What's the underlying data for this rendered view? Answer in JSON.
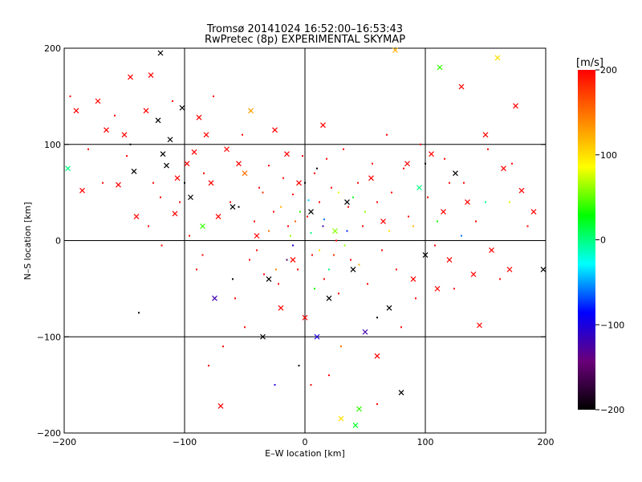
{
  "chart_data": {
    "type": "scatter",
    "title": "Tromsø 20141024 16:52:00–16:53:43",
    "subtitle": "RwPretec (8p) EXPERIMENTAL SKYMAP",
    "xlabel": "E–W location [km]",
    "ylabel": "N–S location [km]",
    "xlim": [
      -200,
      200
    ],
    "ylim": [
      -200,
      200
    ],
    "xticks": [
      "−200",
      "−100",
      "0",
      "100",
      "200"
    ],
    "yticks": [
      "−200",
      "−100",
      "0",
      "100",
      "200"
    ],
    "x_tick_values": [
      -200,
      -100,
      0,
      100,
      200
    ],
    "y_tick_values": [
      -200,
      -100,
      0,
      100,
      200
    ],
    "grid": true,
    "colorbar": {
      "label": "[m/s]",
      "range": [
        -200,
        200
      ],
      "ticks": [
        "200",
        "100",
        "0",
        "−100",
        "−200"
      ],
      "tick_values": [
        200,
        100,
        0,
        -100,
        -200
      ],
      "colors": [
        "#000000",
        "#6a007a",
        "#0000ff",
        "#00ffff",
        "#00ff00",
        "#ffff00",
        "#ff8000",
        "#ff0000"
      ]
    },
    "series": [
      {
        "marker": "x",
        "points": [
          [
            -197,
            75,
            0
          ],
          [
            -190,
            135,
            200
          ],
          [
            -185,
            52,
            200
          ],
          [
            -172,
            145,
            200
          ],
          [
            -165,
            115,
            200
          ],
          [
            -155,
            58,
            200
          ],
          [
            -150,
            110,
            200
          ],
          [
            -145,
            170,
            200
          ],
          [
            -142,
            72,
            -200
          ],
          [
            -140,
            25,
            200
          ],
          [
            -132,
            135,
            200
          ],
          [
            -128,
            172,
            200
          ],
          [
            -122,
            125,
            -200
          ],
          [
            -120,
            195,
            -200
          ],
          [
            -118,
            90,
            -200
          ],
          [
            -115,
            78,
            -200
          ],
          [
            -112,
            105,
            -200
          ],
          [
            -108,
            28,
            200
          ],
          [
            -106,
            65,
            200
          ],
          [
            -102,
            138,
            -200
          ],
          [
            -98,
            80,
            200
          ],
          [
            -95,
            45,
            -200
          ],
          [
            -92,
            92,
            200
          ],
          [
            -88,
            128,
            200
          ],
          [
            -85,
            15,
            40
          ],
          [
            -82,
            110,
            200
          ],
          [
            -78,
            60,
            200
          ],
          [
            -75,
            -60,
            -120
          ],
          [
            -72,
            25,
            200
          ],
          [
            -70,
            -172,
            200
          ],
          [
            -65,
            95,
            200
          ],
          [
            -60,
            35,
            -200
          ],
          [
            -55,
            80,
            200
          ],
          [
            -50,
            70,
            150
          ],
          [
            -45,
            135,
            130
          ],
          [
            -40,
            5,
            200
          ],
          [
            -35,
            -100,
            -200
          ],
          [
            -30,
            -40,
            -200
          ],
          [
            -25,
            115,
            200
          ],
          [
            -20,
            -70,
            200
          ],
          [
            -15,
            90,
            200
          ],
          [
            -10,
            -20,
            200
          ],
          [
            -5,
            60,
            200
          ],
          [
            0,
            -80,
            200
          ],
          [
            5,
            30,
            -200
          ],
          [
            10,
            -100,
            -100
          ],
          [
            15,
            120,
            200
          ],
          [
            20,
            -60,
            -200
          ],
          [
            25,
            10,
            60
          ],
          [
            30,
            -185,
            100
          ],
          [
            35,
            40,
            -200
          ],
          [
            40,
            -30,
            -200
          ],
          [
            42,
            -192,
            20
          ],
          [
            45,
            -175,
            40
          ],
          [
            50,
            -95,
            -120
          ],
          [
            55,
            65,
            200
          ],
          [
            60,
            -120,
            200
          ],
          [
            65,
            20,
            200
          ],
          [
            70,
            -70,
            -200
          ],
          [
            75,
            198,
            120
          ],
          [
            80,
            -158,
            -200
          ],
          [
            85,
            80,
            200
          ],
          [
            90,
            -40,
            200
          ],
          [
            95,
            55,
            0
          ],
          [
            100,
            -15,
            -200
          ],
          [
            105,
            90,
            200
          ],
          [
            110,
            -50,
            200
          ],
          [
            112,
            180,
            40
          ],
          [
            115,
            30,
            200
          ],
          [
            120,
            -20,
            200
          ],
          [
            125,
            70,
            -200
          ],
          [
            130,
            160,
            200
          ],
          [
            135,
            40,
            200
          ],
          [
            140,
            -35,
            200
          ],
          [
            145,
            -88,
            200
          ],
          [
            150,
            110,
            200
          ],
          [
            155,
            -10,
            200
          ],
          [
            160,
            190,
            100
          ],
          [
            165,
            75,
            200
          ],
          [
            170,
            -30,
            200
          ],
          [
            175,
            140,
            200
          ],
          [
            180,
            52,
            200
          ],
          [
            190,
            30,
            200
          ],
          [
            198,
            -30,
            -200
          ]
        ]
      },
      {
        "marker": "dot",
        "points": [
          [
            -195,
            150,
            200
          ],
          [
            -180,
            95,
            200
          ],
          [
            -168,
            60,
            200
          ],
          [
            -158,
            130,
            200
          ],
          [
            -148,
            88,
            200
          ],
          [
            -138,
            -75,
            -200
          ],
          [
            -130,
            15,
            200
          ],
          [
            -126,
            60,
            200
          ],
          [
            -119,
            -5,
            200
          ],
          [
            -110,
            145,
            200
          ],
          [
            -104,
            40,
            200
          ],
          [
            -96,
            5,
            200
          ],
          [
            -90,
            -30,
            200
          ],
          [
            -84,
            70,
            200
          ],
          [
            -76,
            150,
            200
          ],
          [
            -68,
            -110,
            200
          ],
          [
            -62,
            40,
            200
          ],
          [
            -58,
            -60,
            200
          ],
          [
            -52,
            110,
            200
          ],
          [
            -46,
            -20,
            200
          ],
          [
            -42,
            20,
            200
          ],
          [
            -38,
            55,
            200
          ],
          [
            -34,
            -35,
            200
          ],
          [
            -30,
            78,
            200
          ],
          [
            -26,
            30,
            200
          ],
          [
            -22,
            -45,
            200
          ],
          [
            -18,
            65,
            200
          ],
          [
            -14,
            15,
            200
          ],
          [
            -10,
            48,
            200
          ],
          [
            -6,
            -30,
            200
          ],
          [
            -2,
            88,
            200
          ],
          [
            2,
            25,
            200
          ],
          [
            6,
            -15,
            200
          ],
          [
            8,
            70,
            200
          ],
          [
            12,
            40,
            200
          ],
          [
            16,
            -40,
            200
          ],
          [
            18,
            85,
            200
          ],
          [
            22,
            55,
            200
          ],
          [
            26,
            0,
            200
          ],
          [
            28,
            -55,
            200
          ],
          [
            32,
            95,
            200
          ],
          [
            36,
            35,
            200
          ],
          [
            38,
            -20,
            200
          ],
          [
            44,
            60,
            200
          ],
          [
            48,
            15,
            200
          ],
          [
            52,
            -45,
            200
          ],
          [
            56,
            80,
            200
          ],
          [
            60,
            40,
            200
          ],
          [
            64,
            -10,
            200
          ],
          [
            68,
            110,
            200
          ],
          [
            72,
            50,
            200
          ],
          [
            76,
            -30,
            200
          ],
          [
            82,
            75,
            200
          ],
          [
            86,
            25,
            200
          ],
          [
            92,
            -60,
            200
          ],
          [
            96,
            100,
            200
          ],
          [
            102,
            45,
            200
          ],
          [
            108,
            -5,
            200
          ],
          [
            116,
            85,
            200
          ],
          [
            124,
            -50,
            200
          ],
          [
            132,
            60,
            200
          ],
          [
            142,
            20,
            200
          ],
          [
            152,
            95,
            200
          ],
          [
            162,
            -40,
            200
          ],
          [
            172,
            80,
            200
          ],
          [
            185,
            15,
            200
          ],
          [
            -5,
            -130,
            -200
          ],
          [
            5,
            -150,
            200
          ],
          [
            20,
            -140,
            200
          ],
          [
            -25,
            -150,
            -100
          ],
          [
            60,
            -170,
            200
          ],
          [
            -80,
            -130,
            200
          ],
          [
            15,
            15,
            -120
          ],
          [
            -12,
            5,
            60
          ],
          [
            3,
            42,
            -40
          ],
          [
            20,
            -30,
            0
          ],
          [
            -20,
            35,
            120
          ],
          [
            35,
            10,
            -80
          ],
          [
            8,
            -50,
            30
          ],
          [
            -8,
            20,
            160
          ],
          [
            28,
            50,
            80
          ],
          [
            -15,
            -20,
            -160
          ],
          [
            12,
            -10,
            100
          ],
          [
            40,
            45,
            20
          ],
          [
            -30,
            10,
            150
          ],
          [
            0,
            60,
            -200
          ],
          [
            24,
            -15,
            180
          ],
          [
            -4,
            30,
            40
          ],
          [
            16,
            22,
            -60
          ],
          [
            -24,
            -30,
            140
          ],
          [
            33,
            -5,
            60
          ],
          [
            5,
            8,
            0
          ],
          [
            -10,
            -5,
            -100
          ],
          [
            45,
            -25,
            120
          ],
          [
            -35,
            50,
            180
          ],
          [
            10,
            75,
            -200
          ],
          [
            50,
            30,
            60
          ],
          [
            -40,
            -10,
            200
          ],
          [
            70,
            10,
            100
          ],
          [
            -55,
            35,
            -200
          ],
          [
            90,
            15,
            120
          ],
          [
            110,
            20,
            30
          ],
          [
            130,
            5,
            -60
          ],
          [
            150,
            40,
            0
          ],
          [
            170,
            40,
            80
          ],
          [
            -100,
            60,
            -200
          ],
          [
            -120,
            45,
            200
          ],
          [
            -145,
            100,
            -200
          ],
          [
            120,
            60,
            200
          ],
          [
            100,
            80,
            -200
          ],
          [
            -60,
            -40,
            -200
          ],
          [
            -85,
            -15,
            200
          ],
          [
            60,
            -80,
            -200
          ],
          [
            80,
            -90,
            200
          ],
          [
            -50,
            -90,
            200
          ],
          [
            30,
            -110,
            150
          ]
        ]
      }
    ]
  }
}
